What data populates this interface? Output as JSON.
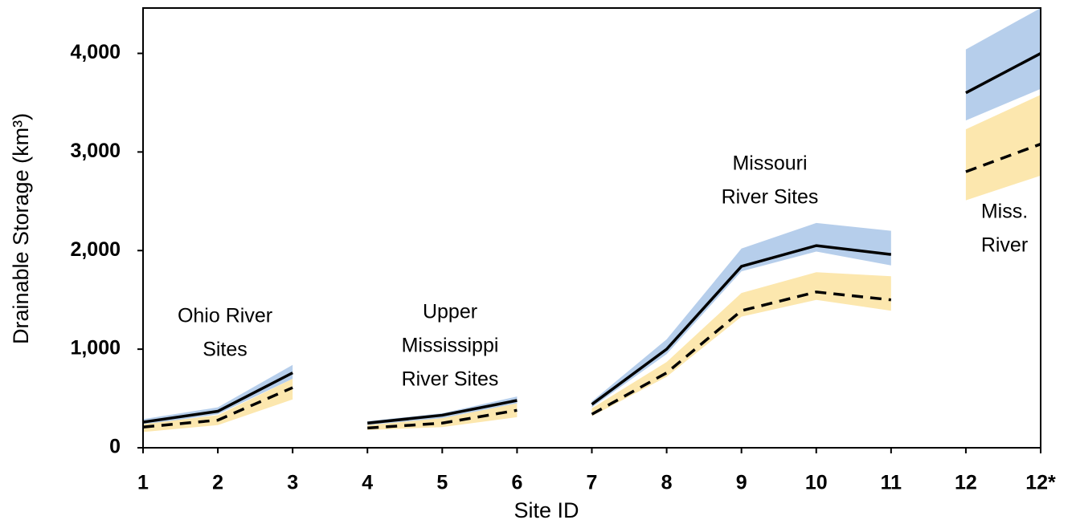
{
  "chart_data": {
    "type": "line",
    "y_label": "Drainable Storage (km³)",
    "x_label": "Site ID",
    "categories": [
      "1",
      "2",
      "3",
      "4",
      "5",
      "6",
      "7",
      "8",
      "9",
      "10",
      "11",
      "12",
      "12*"
    ],
    "ylim": [
      0,
      4460
    ],
    "yticks": [
      0,
      {
        "value": 1000,
        "label": "1,000"
      },
      {
        "value": 2000,
        "label": "2,000"
      },
      {
        "value": 3000,
        "label": "3,000"
      },
      {
        "value": 4000,
        "label": "4,000"
      }
    ],
    "series": [
      {
        "style": "solid",
        "color": "#000000",
        "band_color": "#a9c6e8",
        "values": [
          260,
          370,
          760,
          null,
          null,
          null,
          null,
          null,
          null,
          null,
          null,
          null,
          null
        ],
        "lower": [
          230,
          340,
          700,
          null,
          null,
          null,
          null,
          null,
          null,
          null,
          null,
          null,
          null
        ],
        "upper": [
          290,
          410,
          840,
          null,
          null,
          null,
          null,
          null,
          null,
          null,
          null,
          null,
          null
        ]
      },
      {
        "style": "solid",
        "color": "#000000",
        "band_color": "#a9c6e8",
        "values": [
          null,
          null,
          null,
          250,
          330,
          480,
          null,
          null,
          null,
          null,
          null,
          null,
          null
        ],
        "lower": [
          null,
          null,
          null,
          230,
          300,
          450,
          null,
          null,
          null,
          null,
          null,
          null,
          null
        ],
        "upper": [
          null,
          null,
          null,
          270,
          350,
          520,
          null,
          null,
          null,
          null,
          null,
          null,
          null
        ]
      },
      {
        "style": "solid",
        "color": "#000000",
        "band_color": "#a9c6e8",
        "values": [
          null,
          null,
          null,
          null,
          null,
          null,
          440,
          1000,
          1840,
          2050,
          1960,
          null,
          null
        ],
        "lower": [
          null,
          null,
          null,
          null,
          null,
          null,
          410,
          950,
          1790,
          1990,
          1850,
          null,
          null
        ],
        "upper": [
          null,
          null,
          null,
          null,
          null,
          null,
          470,
          1100,
          2020,
          2280,
          2200,
          null,
          null
        ]
      },
      {
        "style": "solid",
        "color": "#000000",
        "band_color": "#a9c6e8",
        "values": [
          null,
          null,
          null,
          null,
          null,
          null,
          null,
          null,
          null,
          null,
          null,
          3600,
          4000
        ],
        "lower": [
          null,
          null,
          null,
          null,
          null,
          null,
          null,
          null,
          null,
          null,
          null,
          3320,
          3640
        ],
        "upper": [
          null,
          null,
          null,
          null,
          null,
          null,
          null,
          null,
          null,
          null,
          null,
          4040,
          4460
        ]
      },
      {
        "style": "dashed",
        "color": "#000000",
        "band_color": "#fbe3a0",
        "values": [
          210,
          280,
          610,
          null,
          null,
          null,
          null,
          null,
          null,
          null,
          null,
          null,
          null
        ],
        "lower": [
          160,
          230,
          490,
          null,
          null,
          null,
          null,
          null,
          null,
          null,
          null,
          null,
          null
        ],
        "upper": [
          240,
          330,
          700,
          null,
          null,
          null,
          null,
          null,
          null,
          null,
          null,
          null,
          null
        ]
      },
      {
        "style": "dashed",
        "color": "#000000",
        "band_color": "#fbe3a0",
        "values": [
          null,
          null,
          null,
          200,
          250,
          380,
          null,
          null,
          null,
          null,
          null,
          null,
          null
        ],
        "lower": [
          null,
          null,
          null,
          180,
          210,
          310,
          null,
          null,
          null,
          null,
          null,
          null,
          null
        ],
        "upper": [
          null,
          null,
          null,
          230,
          300,
          450,
          null,
          null,
          null,
          null,
          null,
          null,
          null
        ]
      },
      {
        "style": "dashed",
        "color": "#000000",
        "band_color": "#fbe3a0",
        "values": [
          null,
          null,
          null,
          null,
          null,
          null,
          340,
          760,
          1390,
          1580,
          1500,
          null,
          null
        ],
        "lower": [
          null,
          null,
          null,
          null,
          null,
          null,
          320,
          720,
          1330,
          1500,
          1390,
          null,
          null
        ],
        "upper": [
          null,
          null,
          null,
          null,
          null,
          null,
          400,
          870,
          1570,
          1780,
          1740,
          null,
          null
        ]
      },
      {
        "style": "dashed",
        "color": "#000000",
        "band_color": "#fbe3a0",
        "values": [
          null,
          null,
          null,
          null,
          null,
          null,
          null,
          null,
          null,
          null,
          null,
          2800,
          3080
        ],
        "lower": [
          null,
          null,
          null,
          null,
          null,
          null,
          null,
          null,
          null,
          null,
          null,
          2510,
          2760
        ],
        "upper": [
          null,
          null,
          null,
          null,
          null,
          null,
          null,
          null,
          null,
          null,
          null,
          3230,
          3580
        ]
      }
    ],
    "annotations": [
      {
        "lines": [
          "Ohio River",
          "Sites"
        ]
      },
      {
        "lines": [
          "Upper",
          "Mississippi",
          "River Sites"
        ]
      },
      {
        "lines": [
          "Missouri",
          "River Sites"
        ]
      },
      {
        "lines": [
          "Miss.",
          "River"
        ]
      }
    ]
  }
}
